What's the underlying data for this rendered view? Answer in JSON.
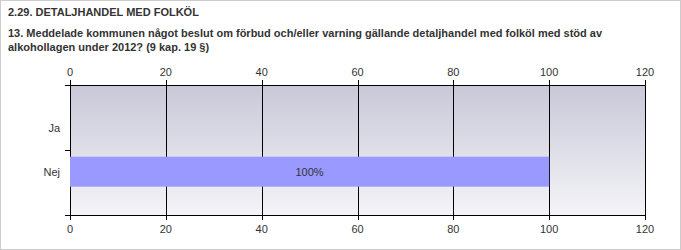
{
  "chart_data": {
    "type": "bar",
    "orientation": "horizontal",
    "title": "2.29. DETALJHANDEL MED FOLKÖL",
    "subtitle": "13. Meddelade kommunen något beslut om förbud och/eller varning gällande detaljhandel med folköl med stöd av alkohollagen under 2012? (9 kap. 19 §)",
    "categories": [
      "Ja",
      "Nej"
    ],
    "values": [
      0,
      100
    ],
    "value_labels": [
      null,
      "100%"
    ],
    "color": "#9999ff",
    "xlim": [
      0,
      120
    ],
    "xticks": [
      0,
      20,
      40,
      60,
      80,
      100,
      120
    ],
    "grid": true,
    "data_labels": true
  }
}
